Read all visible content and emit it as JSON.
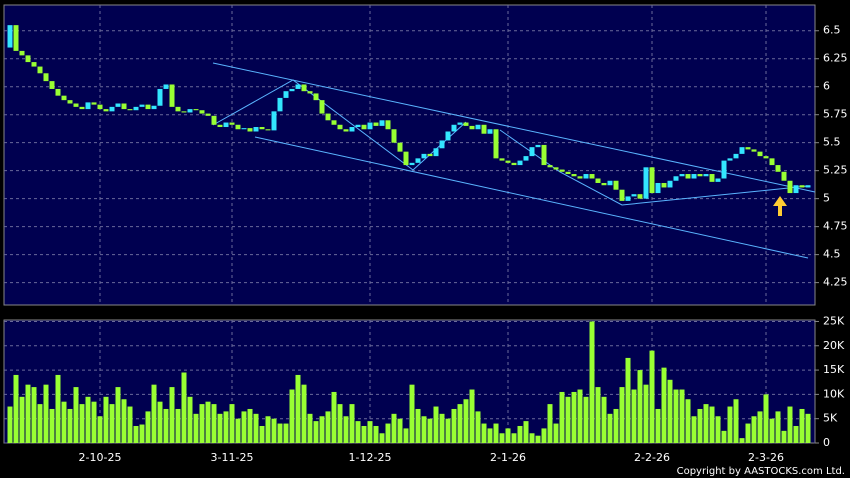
{
  "chart_data": [
    {
      "type": "candlestick",
      "up_color": "#33e6ff",
      "down_color": "#99ff33",
      "open": [
        6.35,
        6.55,
        6.32,
        6.28,
        6.22,
        6.18,
        6.12,
        6.05,
        5.98,
        5.92,
        5.88,
        5.85,
        5.82,
        5.8,
        5.86,
        5.84,
        5.8,
        5.78,
        5.82,
        5.85,
        5.8,
        5.79,
        5.82,
        5.84,
        5.8,
        5.83,
        5.98,
        6.02,
        5.82,
        5.78,
        5.77,
        5.8,
        5.79,
        5.76,
        5.74,
        5.66,
        5.64,
        5.68,
        5.66,
        5.62,
        5.63,
        5.6,
        5.64,
        5.62,
        5.61,
        5.78,
        5.9,
        5.96,
        5.98,
        6.02,
        5.96,
        5.94,
        5.88,
        5.76,
        5.7,
        5.66,
        5.62,
        5.6,
        5.64,
        5.66,
        5.62,
        5.68,
        5.65,
        5.7,
        5.62,
        5.5,
        5.42,
        5.3,
        5.32,
        5.36,
        5.4,
        5.38,
        5.45,
        5.52,
        5.6,
        5.66,
        5.68,
        5.65,
        5.62,
        5.66,
        5.58,
        5.62,
        5.36,
        5.34,
        5.32,
        5.3,
        5.34,
        5.38,
        5.46,
        5.48,
        5.3,
        5.28,
        5.26,
        5.24,
        5.22,
        5.2,
        5.18,
        5.22,
        5.18,
        5.14,
        5.12,
        5.16,
        5.08,
        4.98,
        5.02,
        5.04,
        5.0,
        5.28,
        5.05,
        5.14,
        5.1,
        5.16,
        5.2,
        5.22,
        5.18,
        5.22,
        5.2,
        5.22,
        5.15,
        5.18,
        5.34,
        5.36,
        5.4,
        5.46,
        5.44,
        5.42,
        5.38,
        5.36,
        5.3,
        5.24,
        5.16,
        5.05,
        5.12,
        5.1
      ],
      "close": [
        6.55,
        6.32,
        6.28,
        6.22,
        6.18,
        6.12,
        6.05,
        5.98,
        5.92,
        5.88,
        5.85,
        5.82,
        5.8,
        5.86,
        5.84,
        5.8,
        5.78,
        5.82,
        5.85,
        5.8,
        5.79,
        5.82,
        5.84,
        5.8,
        5.83,
        5.98,
        6.02,
        5.82,
        5.78,
        5.77,
        5.8,
        5.79,
        5.76,
        5.74,
        5.66,
        5.64,
        5.68,
        5.66,
        5.62,
        5.63,
        5.6,
        5.64,
        5.62,
        5.61,
        5.78,
        5.9,
        5.96,
        5.98,
        6.02,
        5.96,
        5.94,
        5.88,
        5.76,
        5.7,
        5.66,
        5.62,
        5.6,
        5.64,
        5.66,
        5.62,
        5.68,
        5.65,
        5.7,
        5.62,
        5.5,
        5.42,
        5.3,
        5.32,
        5.36,
        5.4,
        5.38,
        5.45,
        5.52,
        5.6,
        5.66,
        5.68,
        5.65,
        5.62,
        5.66,
        5.58,
        5.62,
        5.36,
        5.34,
        5.32,
        5.3,
        5.34,
        5.38,
        5.46,
        5.48,
        5.3,
        5.28,
        5.26,
        5.24,
        5.22,
        5.2,
        5.18,
        5.22,
        5.18,
        5.14,
        5.12,
        5.16,
        5.08,
        4.98,
        5.02,
        5.04,
        5.0,
        5.28,
        5.05,
        5.14,
        5.1,
        5.16,
        5.2,
        5.22,
        5.18,
        5.22,
        5.2,
        5.22,
        5.15,
        5.18,
        5.34,
        5.36,
        5.4,
        5.46,
        5.44,
        5.42,
        5.38,
        5.36,
        5.3,
        5.24,
        5.16,
        5.05,
        5.12,
        5.1,
        5.12
      ],
      "ylim": [
        4.05,
        6.73
      ],
      "yticks": [
        4.25,
        4.5,
        4.75,
        5,
        5.25,
        5.5,
        5.75,
        6,
        6.25,
        6.5
      ],
      "grid": true
    },
    {
      "type": "bar",
      "color": "#99ff33",
      "categories": [
        null,
        null,
        null,
        null,
        null,
        null,
        null,
        null,
        null,
        null,
        null,
        null,
        null,
        null,
        null,
        "2-10-25",
        null,
        null,
        null,
        null,
        null,
        null,
        null,
        null,
        null,
        null,
        null,
        null,
        null,
        null,
        null,
        null,
        null,
        null,
        null,
        null,
        null,
        "3-11-25",
        null,
        null,
        null,
        null,
        null,
        null,
        null,
        null,
        null,
        null,
        null,
        null,
        null,
        null,
        null,
        null,
        null,
        null,
        null,
        null,
        null,
        null,
        "1-12-25",
        null,
        null,
        null,
        null,
        null,
        null,
        null,
        null,
        null,
        null,
        null,
        null,
        null,
        null,
        null,
        null,
        null,
        null,
        null,
        null,
        null,
        null,
        "2-1-26",
        null,
        null,
        null,
        null,
        null,
        null,
        null,
        null,
        null,
        null,
        null,
        null,
        null,
        null,
        null,
        null,
        null,
        null,
        null,
        null,
        null,
        null,
        null,
        "2-2-26",
        null,
        null,
        null,
        null,
        null,
        null,
        null,
        null,
        null,
        null,
        null,
        null,
        null,
        null,
        null,
        null,
        null,
        null,
        "2-3-26",
        null,
        null,
        null,
        null,
        null,
        null,
        null
      ],
      "values": [
        7500,
        14000,
        9500,
        12000,
        11500,
        8000,
        12000,
        7000,
        14000,
        8500,
        7000,
        11500,
        8000,
        9500,
        8500,
        5500,
        9500,
        8000,
        11500,
        9000,
        7500,
        3500,
        3800,
        6500,
        12000,
        8500,
        7000,
        11500,
        7000,
        14500,
        9500,
        6000,
        8000,
        8500,
        8000,
        6000,
        6500,
        8000,
        5000,
        6500,
        7000,
        6000,
        3500,
        5500,
        5000,
        4000,
        4000,
        11000,
        14000,
        12000,
        6000,
        4500,
        5500,
        6500,
        10500,
        8000,
        5500,
        8000,
        4500,
        3500,
        4500,
        3500,
        2000,
        4000,
        6000,
        5000,
        3000,
        12000,
        7000,
        5500,
        5000,
        7500,
        6000,
        5000,
        7000,
        8000,
        9000,
        11000,
        6500,
        4000,
        3000,
        4000,
        2000,
        3000,
        2000,
        3500,
        4500,
        2000,
        1500,
        3000,
        8000,
        4000,
        10500,
        9500,
        10500,
        11000,
        9500,
        25000,
        11500,
        9500,
        6000,
        7000,
        11500,
        17500,
        11000,
        15000,
        12000,
        19000,
        7000,
        15500,
        13000,
        11000,
        11000,
        9000,
        5500,
        7000,
        8000,
        7500,
        5500,
        2500,
        7500,
        9000,
        1000,
        4000,
        5500,
        6500,
        10000,
        5000,
        6500,
        2500,
        7500,
        3500,
        7000,
        6000
      ],
      "ylim": [
        0,
        25300
      ],
      "yticks": [
        {
          "value": 0,
          "label": "0"
        },
        {
          "value": 5000,
          "label": "5K"
        },
        {
          "value": 10000,
          "label": "10K"
        },
        {
          "value": 15000,
          "label": "15K"
        },
        {
          "value": 20000,
          "label": "20K"
        },
        {
          "value": 25000,
          "label": "25K"
        }
      ],
      "grid": true,
      "copyright": "Copyright by AASTOCKS.com Ltd."
    }
  ]
}
